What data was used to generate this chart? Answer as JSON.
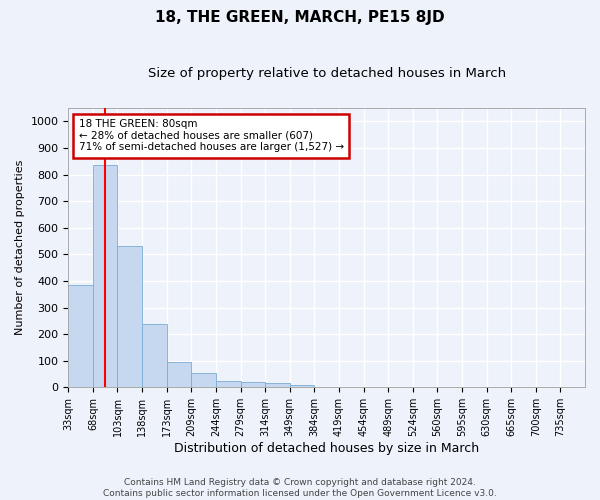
{
  "title": "18, THE GREEN, MARCH, PE15 8JD",
  "subtitle": "Size of property relative to detached houses in March",
  "xlabel": "Distribution of detached houses by size in March",
  "ylabel": "Number of detached properties",
  "bar_color": "#c5d8f0",
  "bar_edge_color": "#7aadd4",
  "bar_values": [
    385,
    835,
    530,
    240,
    97,
    53,
    22,
    20,
    15,
    10,
    0,
    0,
    0,
    0,
    0,
    0,
    0,
    0,
    0,
    0
  ],
  "bin_labels": [
    "33sqm",
    "68sqm",
    "103sqm",
    "138sqm",
    "173sqm",
    "209sqm",
    "244sqm",
    "279sqm",
    "314sqm",
    "349sqm",
    "384sqm",
    "419sqm",
    "454sqm",
    "489sqm",
    "524sqm",
    "560sqm",
    "595sqm",
    "630sqm",
    "665sqm",
    "700sqm",
    "735sqm"
  ],
  "ylim": [
    0,
    1050
  ],
  "yticks": [
    0,
    100,
    200,
    300,
    400,
    500,
    600,
    700,
    800,
    900,
    1000
  ],
  "property_label": "18 THE GREEN: 80sqm",
  "pct_smaller": 28,
  "count_smaller": 607,
  "pct_semi_larger": 71,
  "count_semi_larger": 1527,
  "red_line_x": 1.5,
  "annotation_box_color": "#ffffff",
  "annotation_box_edge": "#cc0000",
  "footer_line1": "Contains HM Land Registry data © Crown copyright and database right 2024.",
  "footer_line2": "Contains public sector information licensed under the Open Government Licence v3.0.",
  "background_color": "#eef2fb",
  "grid_color": "#ffffff",
  "title_fontsize": 11,
  "subtitle_fontsize": 9.5
}
